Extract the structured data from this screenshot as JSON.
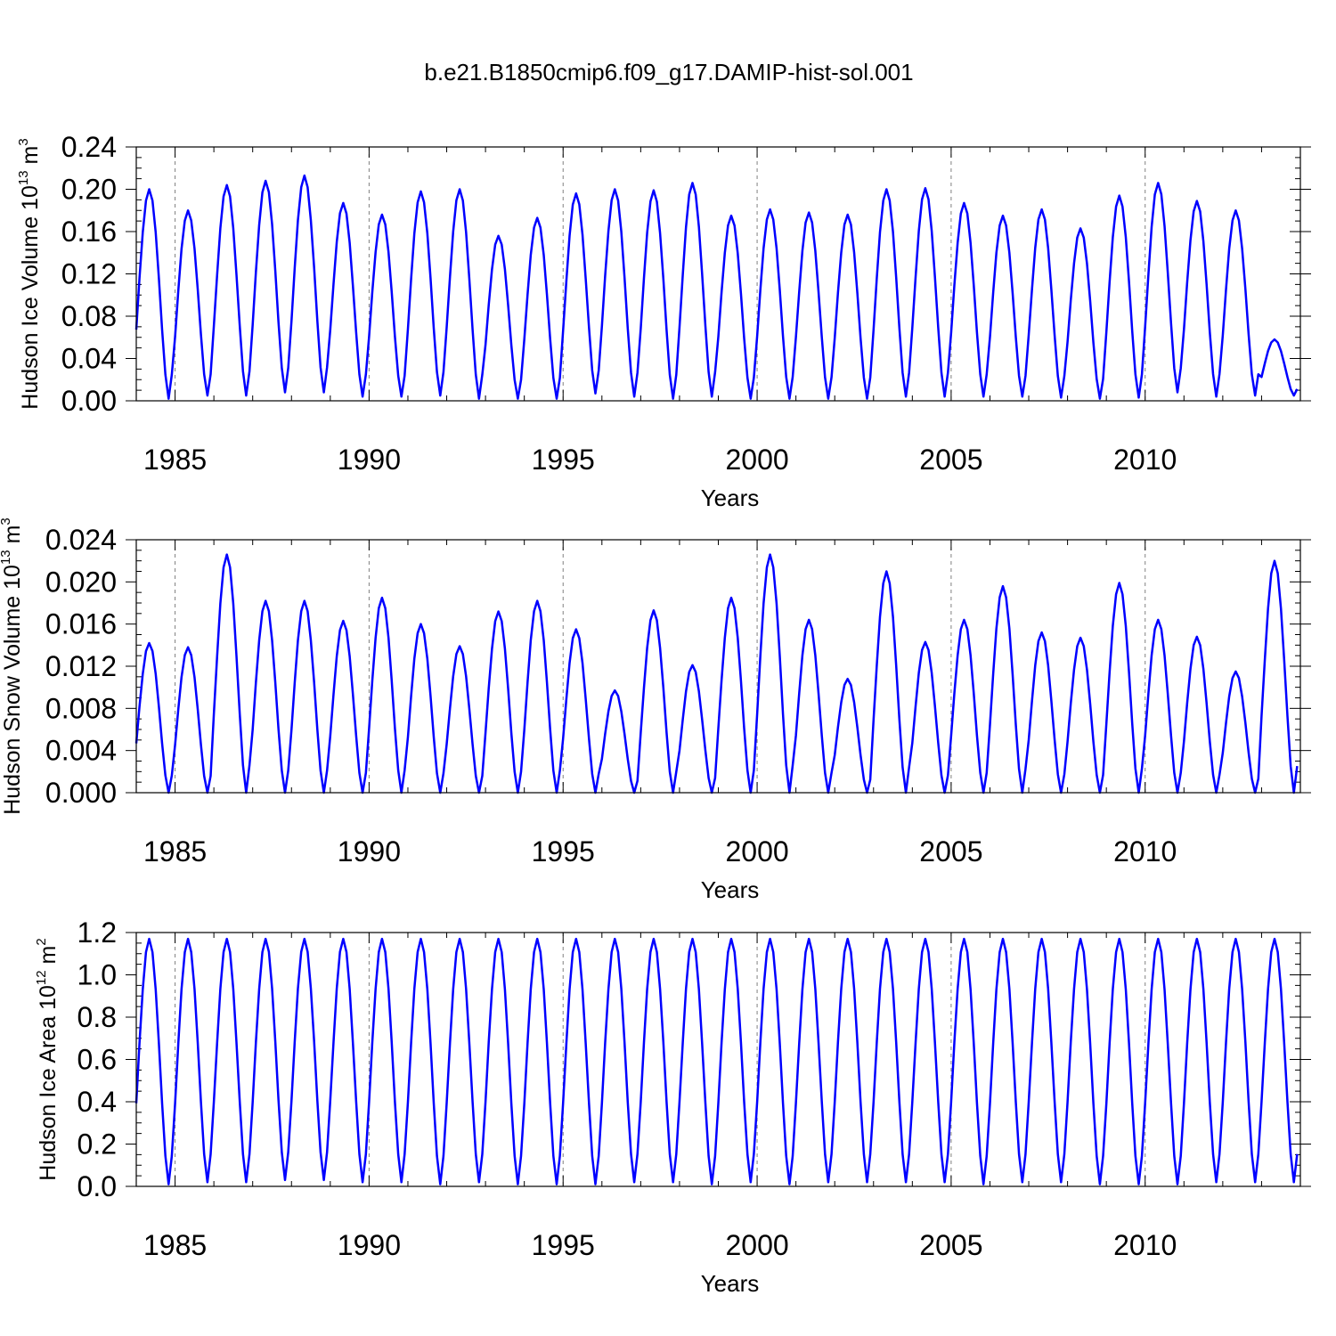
{
  "title": "b.e21.B1850cmip6.f09_g17.DAMIP-hist-sol.001",
  "colors": {
    "line": "#0000ff",
    "axes": "#000000",
    "grid": "#808080"
  },
  "chart_data": [
    {
      "type": "line",
      "ylabel": {
        "main": "Hudson Ice Volume 10",
        "exp": "13",
        "unit": " m",
        "unit_exp": "3"
      },
      "xlabel": "Years",
      "xlim": [
        1984.0,
        2014.0
      ],
      "ylim": [
        0.0,
        0.24
      ],
      "y_ticks": [
        "0.00",
        "0.04",
        "0.08",
        "0.12",
        "0.16",
        "0.20",
        "0.24"
      ],
      "x_ticks": [
        "1985",
        "1990",
        "1995",
        "2000",
        "2005",
        "2010"
      ],
      "grid": "vertical dashed at labeled years",
      "series": [
        {
          "annual_max": [
            0.2,
            0.18,
            0.204,
            0.208,
            0.213,
            0.187,
            0.176,
            0.198,
            0.2,
            0.156,
            0.173,
            0.196,
            0.2,
            0.199,
            0.206,
            0.175,
            0.181,
            0.178,
            0.176,
            0.2,
            0.201,
            0.187,
            0.175,
            0.181,
            0.163,
            0.194,
            0.206,
            0.189,
            0.18,
            0.058
          ],
          "annual_min": [
            0.002,
            0.005,
            0.005,
            0.008,
            0.008,
            0.004,
            0.004,
            0.005,
            0.002,
            0.002,
            0.002,
            0.007,
            0.004,
            0.002,
            0.004,
            0.002,
            0.002,
            0.002,
            0.002,
            0.004,
            0.004,
            0.004,
            0.004,
            0.003,
            0.002,
            0.003,
            0.008,
            0.004,
            0.005,
            0.005
          ]
        }
      ]
    },
    {
      "type": "line",
      "ylabel": {
        "main": "Hudson Snow Volume 10",
        "exp": "13",
        "unit": " m",
        "unit_exp": "3"
      },
      "xlabel": "Years",
      "xlim": [
        1984.0,
        2014.0
      ],
      "ylim": [
        0.0,
        0.024
      ],
      "y_ticks": [
        "0.000",
        "0.004",
        "0.008",
        "0.012",
        "0.016",
        "0.020",
        "0.024"
      ],
      "x_ticks": [
        "1985",
        "1990",
        "1995",
        "2000",
        "2005",
        "2010"
      ],
      "grid": "vertical dashed at labeled years",
      "series": [
        {
          "annual_max": [
            0.0142,
            0.0138,
            0.0226,
            0.0182,
            0.0182,
            0.0163,
            0.0185,
            0.016,
            0.0139,
            0.0172,
            0.0182,
            0.0155,
            0.0097,
            0.0173,
            0.0121,
            0.0185,
            0.0226,
            0.0164,
            0.0108,
            0.021,
            0.0143,
            0.0164,
            0.0196,
            0.0152,
            0.0147,
            0.0199,
            0.0164,
            0.0148,
            0.0115,
            0.022
          ],
          "annual_min": [
            0.0,
            0.0,
            0.0,
            0.0,
            0.0,
            0.0,
            0.0,
            0.0,
            0.0,
            0.0,
            0.0,
            0.0,
            0.0,
            0.0,
            0.0,
            0.0,
            0.0,
            0.0,
            0.0,
            0.0,
            0.0,
            0.0,
            0.0,
            0.0,
            0.0,
            0.0,
            0.0,
            0.0,
            0.0,
            0.0
          ]
        }
      ]
    },
    {
      "type": "line",
      "ylabel": {
        "main": "Hudson Ice Area 10",
        "exp": "12",
        "unit": " m",
        "unit_exp": "2"
      },
      "xlabel": "Years",
      "xlim": [
        1984.0,
        2014.0
      ],
      "ylim": [
        0.0,
        1.2
      ],
      "y_ticks": [
        "0.0",
        "0.2",
        "0.4",
        "0.6",
        "0.8",
        "1.0",
        "1.2"
      ],
      "x_ticks": [
        "1985",
        "1990",
        "1995",
        "2000",
        "2005",
        "2010"
      ],
      "grid": "vertical dashed at labeled years",
      "series": [
        {
          "annual_max": [
            1.17,
            1.17,
            1.17,
            1.17,
            1.17,
            1.17,
            1.17,
            1.17,
            1.17,
            1.17,
            1.17,
            1.17,
            1.17,
            1.17,
            1.17,
            1.17,
            1.17,
            1.17,
            1.17,
            1.17,
            1.17,
            1.17,
            1.17,
            1.17,
            1.17,
            1.17,
            1.17,
            1.17,
            1.17,
            1.17
          ],
          "annual_min": [
            0.01,
            0.02,
            0.02,
            0.03,
            0.03,
            0.02,
            0.02,
            0.01,
            0.02,
            0.01,
            0.01,
            0.01,
            0.02,
            0.02,
            0.01,
            0.02,
            0.01,
            0.02,
            0.02,
            0.02,
            0.02,
            0.01,
            0.02,
            0.02,
            0.01,
            0.01,
            0.01,
            0.02,
            0.02,
            0.02
          ]
        }
      ]
    }
  ]
}
